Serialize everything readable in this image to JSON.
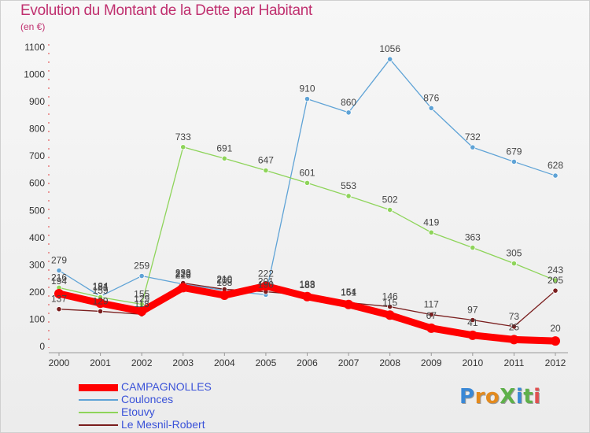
{
  "title": "Evolution du Montant de la Dette par Habitant",
  "subtitle": "(en €)",
  "logo": {
    "text": "ProXiti",
    "colors": [
      "#3a88d6",
      "#e38a1e",
      "#e38a1e",
      "#5eb04a",
      "#3a88d6",
      "#5eb04a",
      "#e05050"
    ]
  },
  "chart_data": {
    "type": "line",
    "x": [
      "2000",
      "2001",
      "2002",
      "2003",
      "2004",
      "2005",
      "2006",
      "2007",
      "2008",
      "2009",
      "2010",
      "2011",
      "2012"
    ],
    "ylim": [
      0,
      1100
    ],
    "yticks": [
      "0",
      "100",
      "200",
      "300",
      "400",
      "500",
      "600",
      "700",
      "800",
      "900",
      "1000",
      "1100"
    ],
    "grid": false,
    "legend_position": "bottom-left",
    "series": [
      {
        "name": "CAMPAGNOLLES",
        "color": "#ff0000",
        "thick": true,
        "values": [
          194,
          159,
          129,
          216,
          188,
          222,
          183,
          154,
          115,
          67,
          41,
          25,
          20
        ],
        "labels": [
          "194",
          "159",
          "129",
          "216",
          "188",
          "222",
          "183",
          "154",
          "115",
          "67",
          "41",
          "25",
          "20"
        ]
      },
      {
        "name": "Coulonces",
        "color": "#5fa3d6",
        "thick": false,
        "values": [
          279,
          184,
          259,
          229,
          206,
          190,
          910,
          860,
          1056,
          876,
          732,
          679,
          628
        ],
        "labels": [
          "279",
          "184",
          "259",
          "229",
          "206",
          "190",
          "910",
          "860",
          "1056",
          "876",
          "732",
          "679",
          "628"
        ]
      },
      {
        "name": "Etouvy",
        "color": "#8ed45a",
        "thick": false,
        "values": [
          216,
          181,
          155,
          733,
          691,
          647,
          601,
          553,
          502,
          419,
          363,
          305,
          243
        ],
        "labels": [
          "216",
          "181",
          "155",
          "733",
          "691",
          "647",
          "601",
          "553",
          "502",
          "419",
          "363",
          "305",
          "243"
        ]
      },
      {
        "name": "Le Mesnil-Robert",
        "color": "#7a1e1e",
        "thick": false,
        "values": [
          137,
          129,
          118,
          233,
          210,
          201,
          188,
          161,
          146,
          117,
          97,
          73,
          205
        ],
        "labels": [
          "137",
          "129",
          "118",
          "233",
          "210",
          "201",
          "188",
          "161",
          "146",
          "117",
          "97",
          "73",
          "205"
        ]
      }
    ]
  }
}
